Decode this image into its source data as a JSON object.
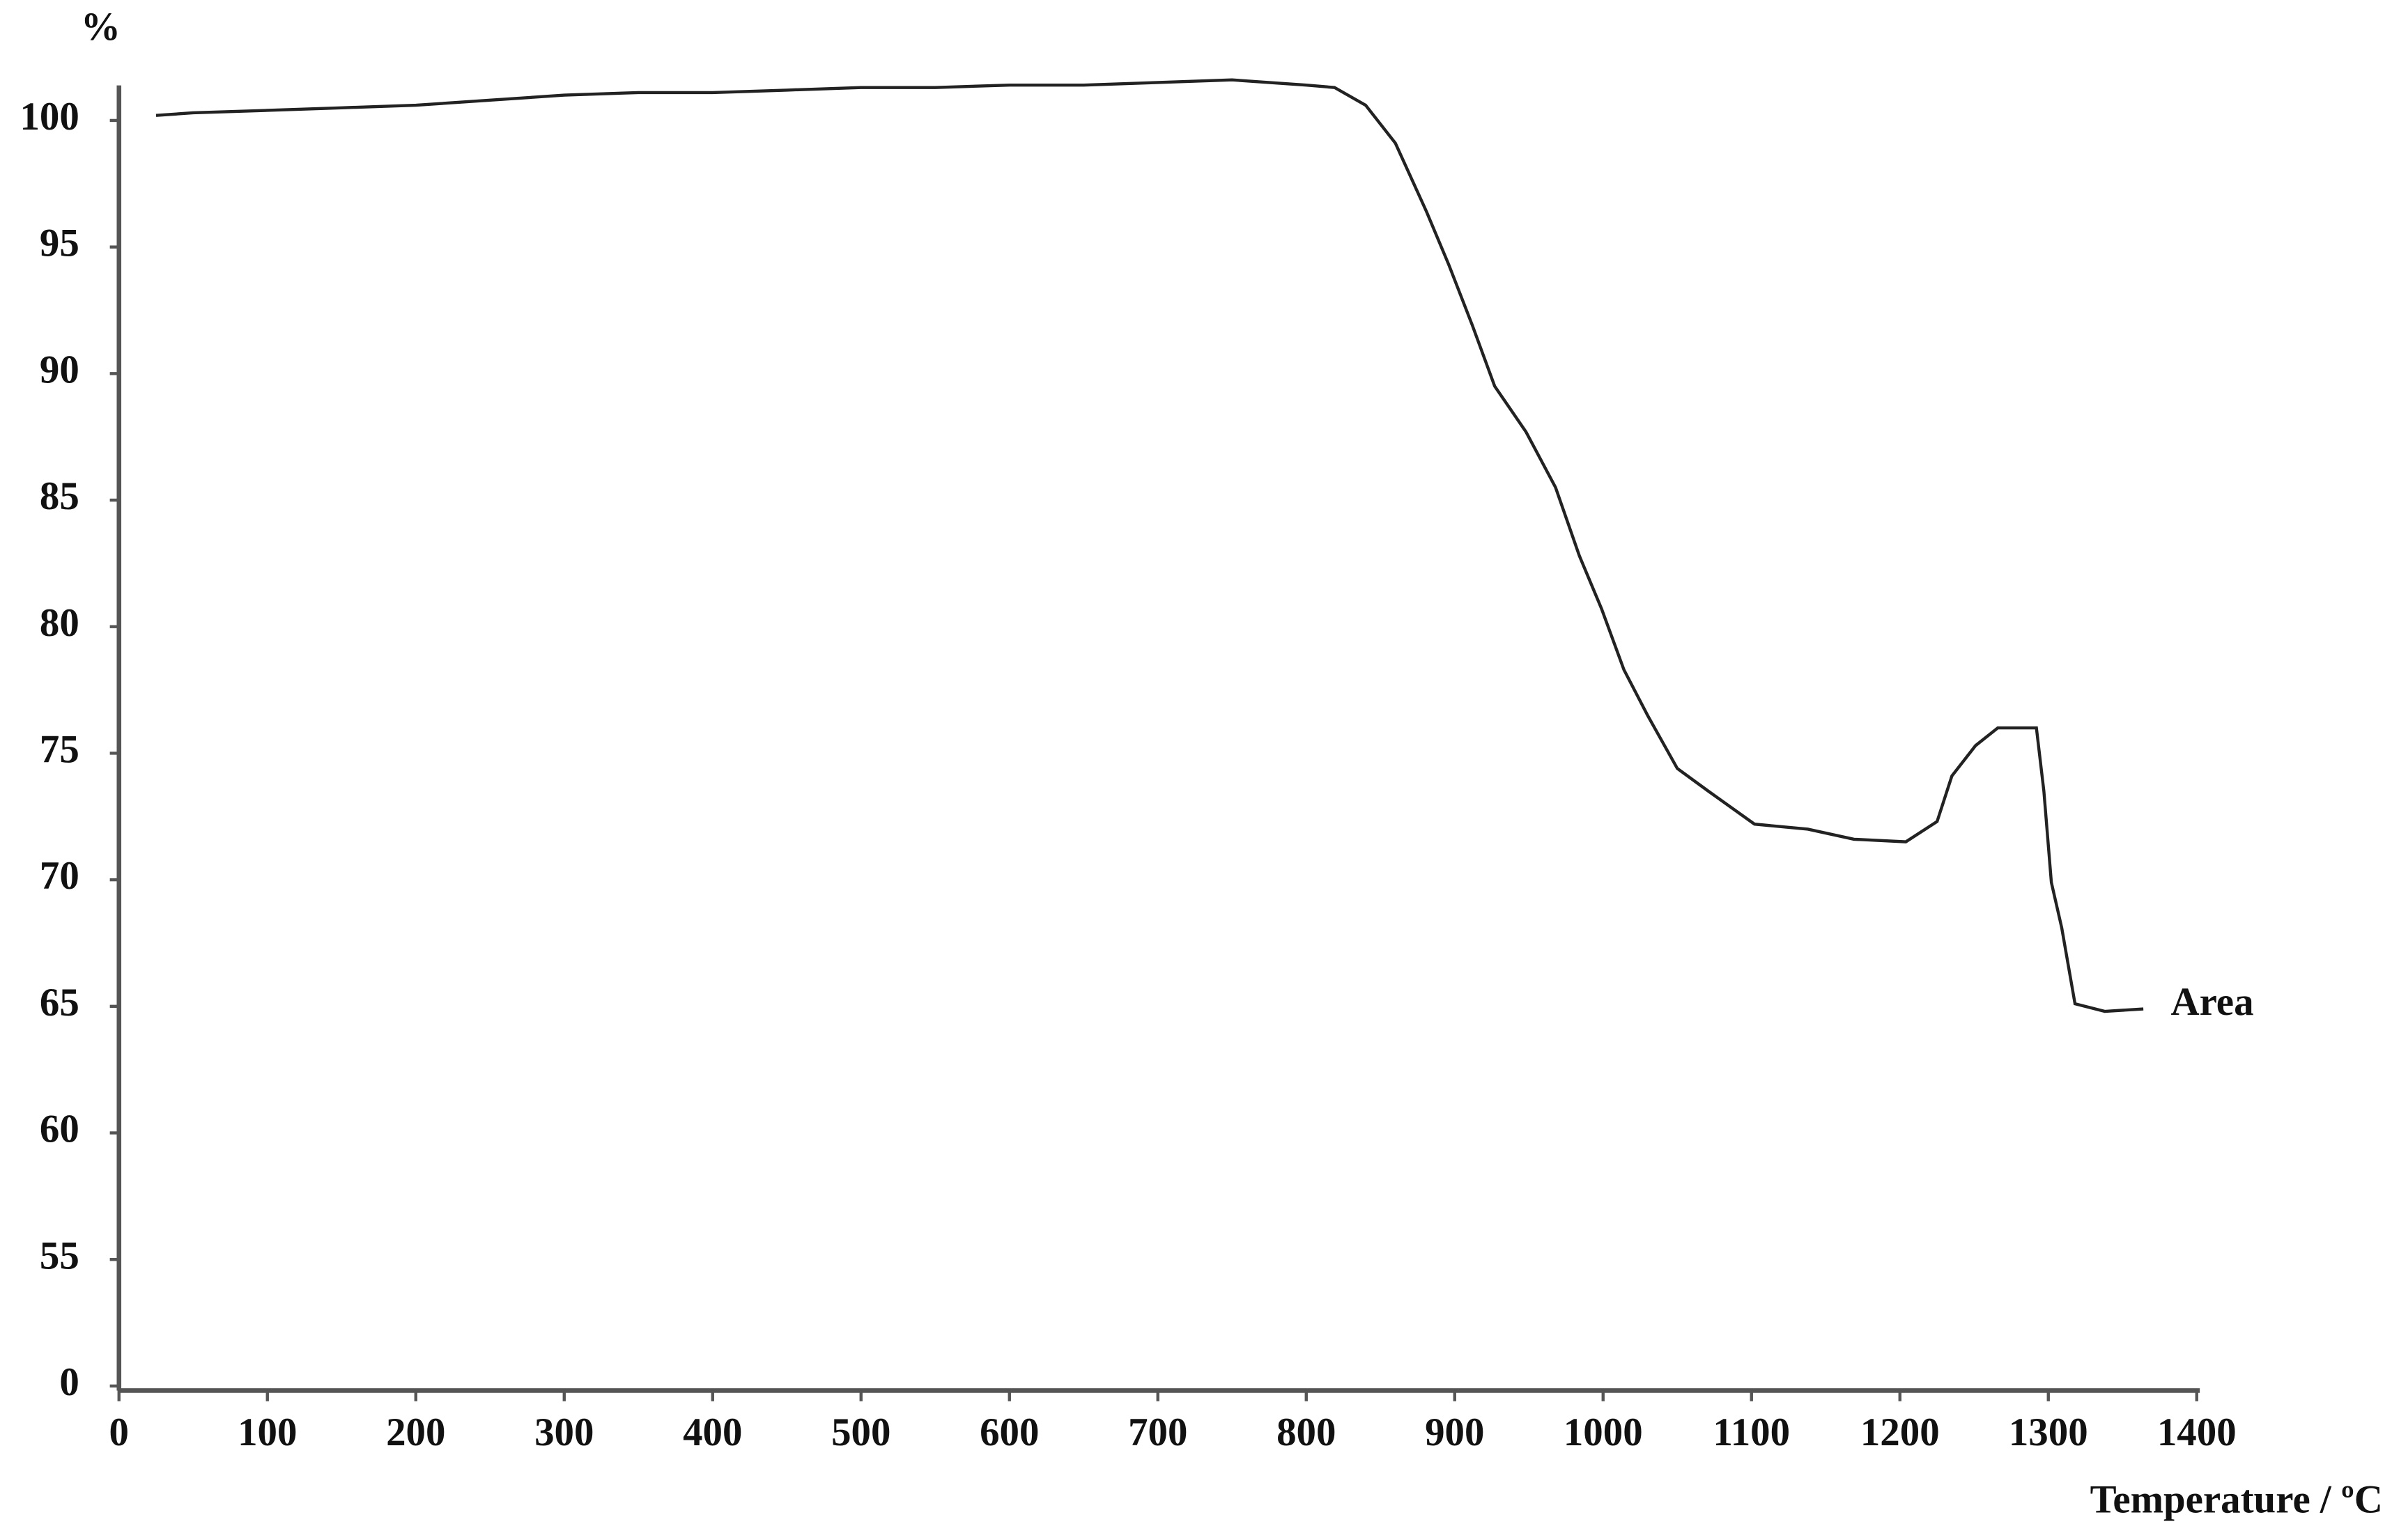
{
  "chart_data": {
    "type": "line",
    "y_unit": "%",
    "x_label": "Temperature / ºC",
    "annotation": "Area",
    "x": [
      25,
      50,
      100,
      150,
      200,
      250,
      300,
      350,
      400,
      450,
      500,
      550,
      600,
      650,
      700,
      750,
      800,
      819,
      840,
      860,
      881,
      896,
      912,
      927,
      948,
      968,
      984,
      999,
      1014,
      1030,
      1050,
      1071,
      1102,
      1138,
      1169,
      1204,
      1225,
      1235,
      1251,
      1266,
      1292,
      1297,
      1302,
      1309,
      1318,
      1338,
      1364
    ],
    "series": [
      {
        "name": "Area",
        "color": "#222222",
        "values": [
          100.2,
          100.3,
          100.4,
          100.5,
          100.6,
          100.8,
          101.0,
          101.1,
          101.1,
          101.2,
          101.3,
          101.3,
          101.4,
          101.4,
          101.5,
          101.6,
          101.4,
          101.3,
          100.6,
          99.1,
          96.4,
          94.3,
          91.9,
          89.5,
          87.7,
          85.5,
          82.8,
          80.7,
          78.3,
          76.5,
          74.4,
          73.5,
          72.2,
          72.0,
          71.6,
          71.5,
          72.3,
          74.1,
          75.3,
          76.0,
          76.0,
          73.5,
          69.9,
          68.1,
          65.1,
          64.8,
          64.9
        ]
      }
    ],
    "xlim": [
      0,
      1400
    ],
    "xticks": [
      0,
      100,
      200,
      300,
      400,
      500,
      600,
      700,
      800,
      900,
      1000,
      1100,
      1200,
      1300,
      1400
    ],
    "ylim": [
      50,
      102
    ],
    "yticks": [
      {
        "value": 50,
        "label": "0"
      },
      55,
      60,
      65,
      70,
      75,
      80,
      85,
      90,
      95,
      100
    ],
    "grid": false
  }
}
